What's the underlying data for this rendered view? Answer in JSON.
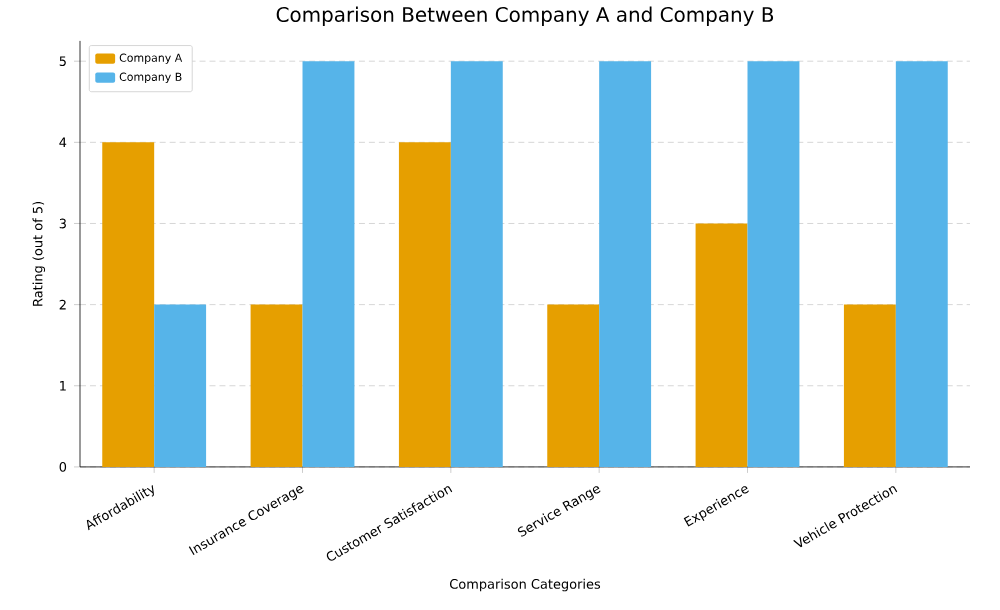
{
  "chart_data": {
    "type": "bar",
    "title": "Comparison Between Company A and Company B",
    "xlabel": "Comparison Categories",
    "ylabel": "Rating (out of 5)",
    "categories": [
      "Affordability",
      "Insurance Coverage",
      "Customer Satisfaction",
      "Service Range",
      "Experience",
      "Vehicle Protection"
    ],
    "series": [
      {
        "name": "Company A",
        "color": "#e69f00",
        "values": [
          4,
          2,
          4,
          2,
          3,
          2
        ]
      },
      {
        "name": "Company B",
        "color": "#56b4e9",
        "values": [
          2,
          5,
          5,
          5,
          5,
          5
        ]
      }
    ],
    "ylim": [
      0,
      5.25
    ],
    "yticks": [
      0,
      1,
      2,
      3,
      4,
      5
    ],
    "grid": "y",
    "legend": "top left"
  }
}
